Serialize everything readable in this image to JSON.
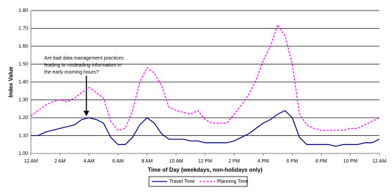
{
  "chart_data": {
    "type": "line",
    "x_label": "Time of Day (weekdays, non-holidays only)",
    "y_label": "Index Value",
    "annotation": [
      "Are bad data management practices",
      "leading to misleading information in",
      "the early morning hours?"
    ],
    "xlim": [
      0,
      24
    ],
    "xticks": [
      {
        "value": 0,
        "label": "12 AM"
      },
      {
        "value": 2,
        "label": "2 AM"
      },
      {
        "value": 4,
        "label": "4 AM"
      },
      {
        "value": 6,
        "label": "6 AM"
      },
      {
        "value": 8,
        "label": "8 AM"
      },
      {
        "value": 10,
        "label": "10 AM"
      },
      {
        "value": 12,
        "label": "12 PM"
      },
      {
        "value": 14,
        "label": "2 PM"
      },
      {
        "value": 16,
        "label": "4 PM"
      },
      {
        "value": 18,
        "label": "6 PM"
      },
      {
        "value": 20,
        "label": "8 PM"
      },
      {
        "value": 22,
        "label": "10 PM"
      },
      {
        "value": 24,
        "label": "12 AM"
      }
    ],
    "ylim": [
      1.0,
      1.8
    ],
    "yticks": [
      {
        "value": 1.0,
        "label": "1.00"
      },
      {
        "value": 1.1,
        "label": "1.10"
      },
      {
        "value": 1.2,
        "label": "1.20"
      },
      {
        "value": 1.3,
        "label": "1.30"
      },
      {
        "value": 1.4,
        "label": "1.40"
      },
      {
        "value": 1.5,
        "label": "1.50"
      },
      {
        "value": 1.6,
        "label": "1.60"
      },
      {
        "value": 1.7,
        "label": "1.70"
      },
      {
        "value": 1.8,
        "label": "1.80"
      }
    ],
    "grid": true,
    "legend": "bottom",
    "x": [
      0,
      0.5,
      1,
      1.5,
      2,
      2.5,
      3,
      3.5,
      4,
      4.5,
      5,
      5.5,
      6,
      6.5,
      7,
      7.5,
      8,
      8.5,
      9,
      9.5,
      10,
      10.5,
      11,
      11.5,
      12,
      12.5,
      13,
      13.5,
      14,
      14.5,
      15,
      15.5,
      16,
      16.5,
      17,
      17.5,
      18,
      18.5,
      19,
      19.5,
      20,
      20.5,
      21,
      21.5,
      22,
      22.5,
      23,
      23.5,
      24
    ],
    "series": [
      {
        "name": "Travel Time",
        "color": "#000080",
        "dash": false,
        "values": [
          1.1,
          1.1,
          1.12,
          1.13,
          1.14,
          1.15,
          1.16,
          1.19,
          1.2,
          1.19,
          1.17,
          1.09,
          1.05,
          1.05,
          1.09,
          1.16,
          1.2,
          1.17,
          1.11,
          1.08,
          1.08,
          1.08,
          1.07,
          1.07,
          1.06,
          1.06,
          1.06,
          1.06,
          1.07,
          1.09,
          1.11,
          1.14,
          1.17,
          1.19,
          1.22,
          1.24,
          1.2,
          1.09,
          1.05,
          1.05,
          1.05,
          1.05,
          1.04,
          1.05,
          1.05,
          1.05,
          1.06,
          1.06,
          1.08
        ]
      },
      {
        "name": "Planning Time",
        "color": "#ff00ff",
        "dash": true,
        "values": [
          1.21,
          1.24,
          1.27,
          1.29,
          1.3,
          1.29,
          1.31,
          1.34,
          1.37,
          1.34,
          1.31,
          1.18,
          1.13,
          1.14,
          1.24,
          1.4,
          1.48,
          1.45,
          1.38,
          1.26,
          1.24,
          1.23,
          1.22,
          1.24,
          1.19,
          1.17,
          1.17,
          1.17,
          1.22,
          1.27,
          1.33,
          1.41,
          1.52,
          1.6,
          1.72,
          1.66,
          1.5,
          1.22,
          1.16,
          1.14,
          1.13,
          1.13,
          1.13,
          1.13,
          1.14,
          1.14,
          1.16,
          1.18,
          1.2
        ]
      }
    ]
  }
}
